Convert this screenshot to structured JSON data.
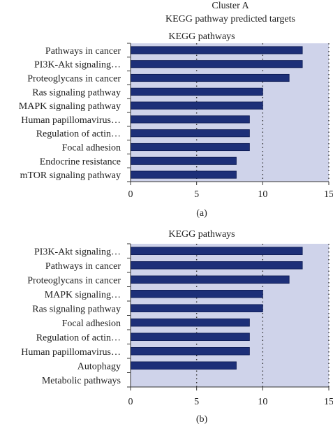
{
  "header": {
    "line1": "Cluster A",
    "line2": "KEGG pathway predicted targets"
  },
  "colors": {
    "plot_background": "#cfd3ea",
    "bar_fill": "#1d2f78",
    "bar_stroke": "#0c1a52",
    "text": "#222222",
    "axis": "#333333",
    "grid": "#333333"
  },
  "chart_data": [
    {
      "type": "bar",
      "orientation": "horizontal",
      "title": "KEGG pathways",
      "panel_label": "(a)",
      "categories": [
        "Pathways in cancer",
        "PI3K-Akt signaling…",
        "Proteoglycans in cancer",
        "Ras signaling pathway",
        "MAPK signaling pathway",
        "Human papillomavirus…",
        "Regulation of actin…",
        "Focal adhesion",
        "Endocrine resistance",
        "mTOR signaling pathway"
      ],
      "values": [
        13,
        13,
        12,
        10,
        10,
        9,
        9,
        9,
        8,
        8
      ],
      "xlim": [
        0,
        15
      ],
      "xticks": [
        "0",
        "5",
        "10",
        "15"
      ],
      "grid": "vertical dotted at 5, 10, 15"
    },
    {
      "type": "bar",
      "orientation": "horizontal",
      "title": "KEGG pathways",
      "panel_label": "(b)",
      "categories": [
        "PI3K-Akt signaling…",
        "Pathways in cancer",
        "Proteoglycans in cancer",
        "MAPK signaling…",
        "Ras signaling pathway",
        "Focal adhesion",
        "Regulation of actin…",
        "Human papillomavirus…",
        "Autophagy",
        "Metabolic pathways"
      ],
      "values": [
        13,
        13,
        12,
        10,
        10,
        9,
        9,
        9,
        8,
        0
      ],
      "xlim": [
        0,
        15
      ],
      "xticks": [
        "0",
        "5",
        "10",
        "15"
      ],
      "grid": "vertical dotted at 5, 10, 15"
    }
  ]
}
